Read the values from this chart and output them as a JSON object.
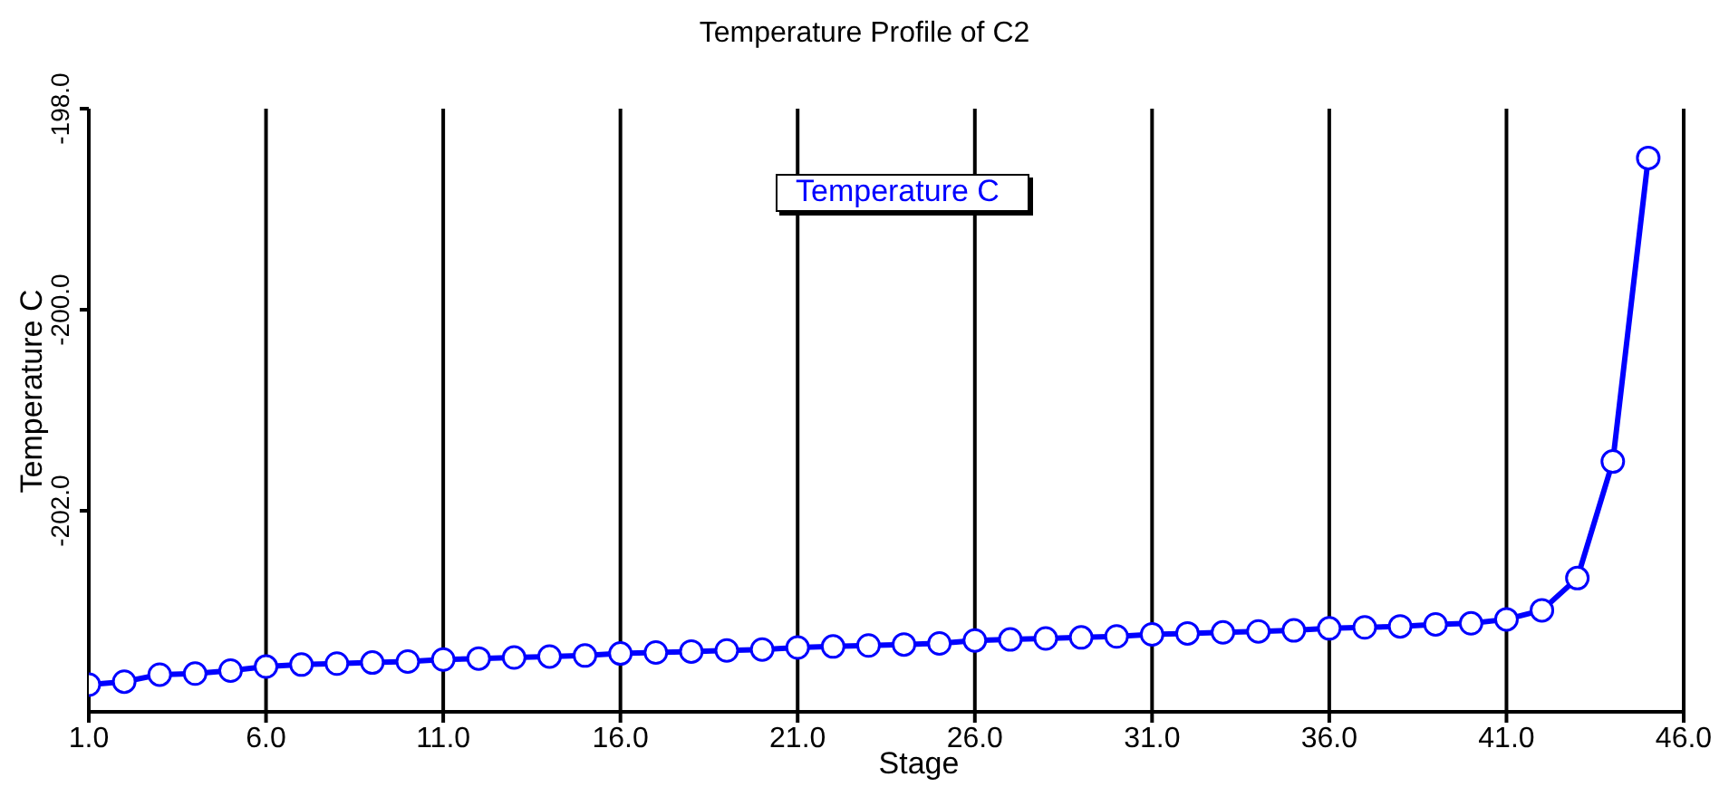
{
  "chart_data": {
    "type": "line",
    "title": "Temperature Profile of C2",
    "xlabel": "Stage",
    "ylabel": "Temperature C",
    "x": [
      1,
      2,
      3,
      4,
      5,
      6,
      7,
      8,
      9,
      10,
      11,
      12,
      13,
      14,
      15,
      16,
      17,
      18,
      19,
      20,
      21,
      22,
      23,
      24,
      25,
      26,
      27,
      28,
      29,
      30,
      31,
      32,
      33,
      34,
      35,
      36,
      37,
      38,
      39,
      40,
      41,
      42,
      43,
      44,
      45
    ],
    "series": [
      {
        "name": "Temperature C",
        "color": "#0000ff",
        "values": [
          -203.73,
          -203.7,
          -203.63,
          -203.62,
          -203.59,
          -203.55,
          -203.53,
          -203.52,
          -203.51,
          -203.5,
          -203.48,
          -203.47,
          -203.46,
          -203.45,
          -203.44,
          -203.42,
          -203.41,
          -203.4,
          -203.39,
          -203.38,
          -203.36,
          -203.35,
          -203.34,
          -203.33,
          -203.32,
          -203.29,
          -203.28,
          -203.27,
          -203.26,
          -203.25,
          -203.23,
          -203.22,
          -203.21,
          -203.2,
          -203.19,
          -203.17,
          -203.16,
          -203.15,
          -203.13,
          -203.12,
          -203.08,
          -202.99,
          -202.67,
          -201.51,
          -198.49
        ]
      }
    ],
    "xlim": [
      1,
      46
    ],
    "ylim": [
      -204,
      -198
    ],
    "xticks": [
      {
        "value": 1,
        "label": "1.0"
      },
      {
        "value": 6,
        "label": "6.0"
      },
      {
        "value": 11,
        "label": "11.0"
      },
      {
        "value": 16,
        "label": "16.0"
      },
      {
        "value": 21,
        "label": "21.0"
      },
      {
        "value": 26,
        "label": "26.0"
      },
      {
        "value": 31,
        "label": "31.0"
      },
      {
        "value": 36,
        "label": "36.0"
      },
      {
        "value": 41,
        "label": "41.0"
      },
      {
        "value": 46,
        "label": "46.0"
      }
    ],
    "yticks": [
      {
        "value": -198,
        "label": "-198.0"
      },
      {
        "value": -200,
        "label": "-200.0"
      },
      {
        "value": -202,
        "label": "-202.0"
      }
    ],
    "grid": "x",
    "legend": "top",
    "marker": "circle",
    "line_style": "solid"
  }
}
